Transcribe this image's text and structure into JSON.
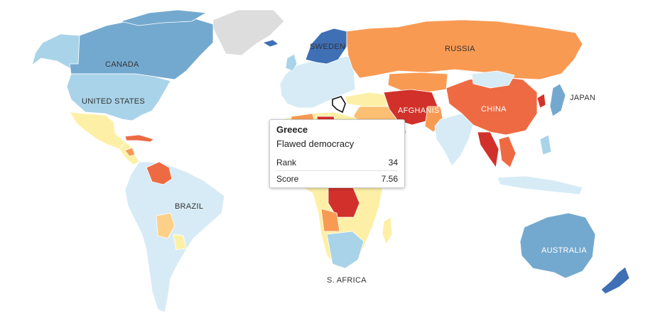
{
  "map": {
    "labels": {
      "canada": "CANADA",
      "united_states": "UNITED STATES",
      "brazil": "BRAZIL",
      "russia": "RUSSIA",
      "china": "CHINA",
      "japan": "JAPAN",
      "sweden": "SWEDEN",
      "afghanistan": "AFGHANISTAN",
      "s_africa": "S. AFRICA",
      "australia": "AUSTRALIA"
    },
    "colors": {
      "full_democracy_dark": "#3f6fb5",
      "full_democracy": "#74a9cf",
      "flawed_democracy_light": "#d6ebf5",
      "flawed_democracy": "#a9d3e8",
      "hybrid_regime": "#fdf0a6",
      "hybrid_regime_orange": "#fdbf73",
      "authoritarian": "#f99a53",
      "authoritarian_strong": "#ee6a43",
      "authoritarian_severe": "#d2312b",
      "no_data": "#dddddd"
    }
  },
  "tooltip": {
    "country": "Greece",
    "category": "Flawed democracy",
    "rank_label": "Rank",
    "rank_value": "34",
    "score_label": "Score",
    "score_value": "7.56"
  }
}
